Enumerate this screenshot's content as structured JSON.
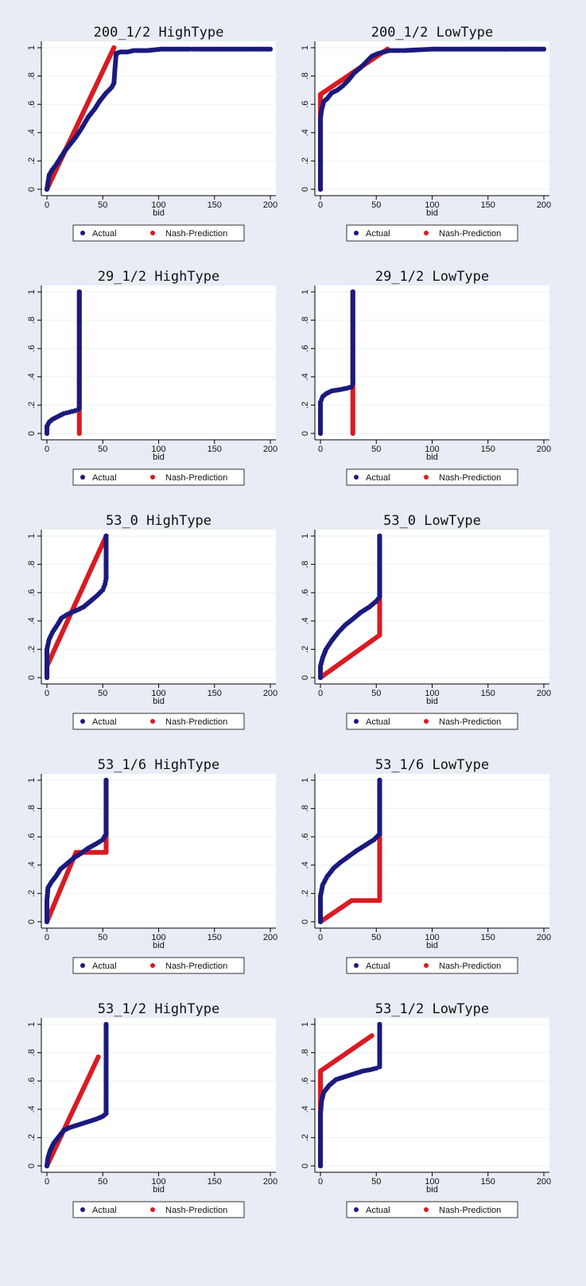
{
  "colors": {
    "actual": "#1a1a7e",
    "nash": "#d91b22",
    "plot_bg": "#ffffff",
    "page_bg": "#e8ecf4",
    "grid": "#eaf2f3"
  },
  "legend": {
    "actual": "Actual",
    "nash": "Nash-Prediction"
  },
  "chart_data": [
    {
      "type": "line",
      "title": "200_1/2 HighType",
      "xlabel": "bid",
      "ylabel": "",
      "xlim": [
        0,
        200
      ],
      "ylim": [
        0,
        1
      ],
      "grid": true,
      "legend_position": "bottom",
      "xticks": [
        "0",
        "50",
        "100",
        "150",
        "200"
      ],
      "yticks": [
        "0",
        ".2",
        ".4",
        ".6",
        ".8",
        "1"
      ],
      "series": [
        {
          "name": "Actual",
          "points": [
            [
              0,
              0
            ],
            [
              1,
              0.05
            ],
            [
              2,
              0.1
            ],
            [
              5,
              0.14
            ],
            [
              8,
              0.17
            ],
            [
              12,
              0.22
            ],
            [
              16,
              0.27
            ],
            [
              20,
              0.31
            ],
            [
              26,
              0.37
            ],
            [
              31,
              0.43
            ],
            [
              37,
              0.51
            ],
            [
              43,
              0.57
            ],
            [
              47,
              0.62
            ],
            [
              53,
              0.68
            ],
            [
              58,
              0.72
            ],
            [
              60,
              0.75
            ],
            [
              61,
              0.86
            ],
            [
              62,
              0.96
            ],
            [
              66,
              0.97
            ],
            [
              72,
              0.97
            ],
            [
              78,
              0.98
            ],
            [
              86,
              0.98
            ],
            [
              90,
              0.98
            ],
            [
              102,
              0.99
            ],
            [
              122,
              0.99
            ],
            [
              128,
              0.99
            ],
            [
              133,
              0.99
            ],
            [
              138,
              0.99
            ],
            [
              142,
              0.99
            ],
            [
              148,
              0.99
            ],
            [
              175,
              0.99
            ],
            [
              186,
              0.99
            ],
            [
              200,
              0.99
            ]
          ]
        },
        {
          "name": "Nash-Prediction",
          "points": [
            [
              0,
              0
            ],
            [
              60,
              1
            ]
          ]
        }
      ]
    },
    {
      "type": "line",
      "title": "200_1/2 LowType",
      "xlabel": "bid",
      "ylabel": "",
      "xlim": [
        0,
        200
      ],
      "ylim": [
        0,
        1
      ],
      "grid": true,
      "legend_position": "bottom",
      "xticks": [
        "0",
        "50",
        "100",
        "150",
        "200"
      ],
      "yticks": [
        "0",
        ".2",
        ".4",
        ".6",
        ".8",
        "1"
      ],
      "series": [
        {
          "name": "Actual",
          "points": [
            [
              0,
              0
            ],
            [
              0,
              0.5
            ],
            [
              1,
              0.56
            ],
            [
              3,
              0.62
            ],
            [
              6,
              0.64
            ],
            [
              10,
              0.68
            ],
            [
              15,
              0.7
            ],
            [
              20,
              0.73
            ],
            [
              25,
              0.77
            ],
            [
              30,
              0.82
            ],
            [
              36,
              0.86
            ],
            [
              41,
              0.9
            ],
            [
              46,
              0.94
            ],
            [
              52,
              0.96
            ],
            [
              57,
              0.97
            ],
            [
              62,
              0.98
            ],
            [
              70,
              0.98
            ],
            [
              75,
              0.98
            ],
            [
              100,
              0.99
            ],
            [
              108,
              0.99
            ],
            [
              170,
              0.99
            ],
            [
              200,
              0.99
            ]
          ]
        },
        {
          "name": "Nash-Prediction",
          "points": [
            [
              0,
              0
            ],
            [
              0,
              0.67
            ],
            [
              60,
              0.99
            ]
          ]
        }
      ]
    },
    {
      "type": "line",
      "title": "29_1/2 HighType",
      "xlabel": "bid",
      "ylabel": "",
      "xlim": [
        0,
        200
      ],
      "ylim": [
        0,
        1
      ],
      "grid": true,
      "legend_position": "bottom",
      "xticks": [
        "0",
        "50",
        "100",
        "150",
        "200"
      ],
      "yticks": [
        "0",
        ".2",
        ".4",
        ".6",
        ".8",
        "1"
      ],
      "series": [
        {
          "name": "Actual",
          "points": [
            [
              0,
              0
            ],
            [
              0,
              0.05
            ],
            [
              2,
              0.08
            ],
            [
              5,
              0.1
            ],
            [
              10,
              0.12
            ],
            [
              15,
              0.14
            ],
            [
              20,
              0.15
            ],
            [
              25,
              0.16
            ],
            [
              28,
              0.17
            ],
            [
              29,
              0.18
            ],
            [
              29,
              1
            ]
          ]
        },
        {
          "name": "Nash-Prediction",
          "points": [
            [
              29,
              0
            ],
            [
              29,
              1
            ]
          ]
        }
      ]
    },
    {
      "type": "line",
      "title": "29_1/2 LowType",
      "xlabel": "bid",
      "ylabel": "",
      "xlim": [
        0,
        200
      ],
      "ylim": [
        0,
        1
      ],
      "grid": true,
      "legend_position": "bottom",
      "xticks": [
        "0",
        "50",
        "100",
        "150",
        "200"
      ],
      "yticks": [
        "0",
        ".2",
        ".4",
        ".6",
        ".8",
        "1"
      ],
      "series": [
        {
          "name": "Actual",
          "points": [
            [
              0,
              0
            ],
            [
              0,
              0.22
            ],
            [
              2,
              0.26
            ],
            [
              5,
              0.28
            ],
            [
              10,
              0.3
            ],
            [
              18,
              0.31
            ],
            [
              24,
              0.32
            ],
            [
              28,
              0.33
            ],
            [
              29,
              0.35
            ],
            [
              29,
              1
            ]
          ]
        },
        {
          "name": "Nash-Prediction",
          "points": [
            [
              29,
              0
            ],
            [
              29,
              1
            ]
          ]
        }
      ]
    },
    {
      "type": "line",
      "title": "53_0 HighType",
      "xlabel": "bid",
      "ylabel": "",
      "xlim": [
        0,
        200
      ],
      "ylim": [
        0,
        1
      ],
      "grid": true,
      "legend_position": "bottom",
      "xticks": [
        "0",
        "50",
        "100",
        "150",
        "200"
      ],
      "yticks": [
        "0",
        ".2",
        ".4",
        ".6",
        ".8",
        "1"
      ],
      "series": [
        {
          "name": "Actual",
          "points": [
            [
              0,
              0
            ],
            [
              0,
              0.2
            ],
            [
              2,
              0.27
            ],
            [
              5,
              0.32
            ],
            [
              10,
              0.38
            ],
            [
              13,
              0.42
            ],
            [
              17,
              0.44
            ],
            [
              22,
              0.46
            ],
            [
              28,
              0.48
            ],
            [
              33,
              0.5
            ],
            [
              39,
              0.54
            ],
            [
              45,
              0.58
            ],
            [
              50,
              0.62
            ],
            [
              52,
              0.66
            ],
            [
              53,
              0.7
            ],
            [
              53,
              1
            ]
          ]
        },
        {
          "name": "Nash-Prediction",
          "points": [
            [
              0,
              0
            ],
            [
              0,
              0.08
            ],
            [
              53,
              1
            ]
          ]
        }
      ]
    },
    {
      "type": "line",
      "title": "53_0 LowType",
      "xlabel": "bid",
      "ylabel": "",
      "xlim": [
        0,
        200
      ],
      "ylim": [
        0,
        1
      ],
      "grid": true,
      "legend_position": "bottom",
      "xticks": [
        "0",
        "50",
        "100",
        "150",
        "200"
      ],
      "yticks": [
        "0",
        ".2",
        ".4",
        ".6",
        ".8",
        "1"
      ],
      "series": [
        {
          "name": "Actual",
          "points": [
            [
              0,
              0
            ],
            [
              0,
              0.08
            ],
            [
              2,
              0.14
            ],
            [
              5,
              0.2
            ],
            [
              10,
              0.26
            ],
            [
              16,
              0.32
            ],
            [
              22,
              0.37
            ],
            [
              30,
              0.42
            ],
            [
              36,
              0.46
            ],
            [
              44,
              0.5
            ],
            [
              50,
              0.54
            ],
            [
              53,
              0.57
            ],
            [
              53,
              1
            ]
          ]
        },
        {
          "name": "Nash-Prediction",
          "points": [
            [
              0,
              0
            ],
            [
              53,
              0.3
            ],
            [
              53,
              1
            ]
          ]
        }
      ]
    },
    {
      "type": "line",
      "title": "53_1/6 HighType",
      "xlabel": "bid",
      "ylabel": "",
      "xlim": [
        0,
        200
      ],
      "ylim": [
        0,
        1
      ],
      "grid": true,
      "legend_position": "bottom",
      "xticks": [
        "0",
        "50",
        "100",
        "150",
        "200"
      ],
      "yticks": [
        "0",
        ".2",
        ".4",
        ".6",
        ".8",
        "1"
      ],
      "series": [
        {
          "name": "Actual",
          "points": [
            [
              0,
              0
            ],
            [
              0,
              0.15
            ],
            [
              1,
              0.24
            ],
            [
              4,
              0.28
            ],
            [
              8,
              0.32
            ],
            [
              12,
              0.37
            ],
            [
              18,
              0.41
            ],
            [
              24,
              0.45
            ],
            [
              30,
              0.48
            ],
            [
              37,
              0.52
            ],
            [
              44,
              0.55
            ],
            [
              50,
              0.58
            ],
            [
              53,
              0.62
            ],
            [
              53,
              1
            ]
          ]
        },
        {
          "name": "Nash-Prediction",
          "points": [
            [
              0,
              0
            ],
            [
              26,
              0.49
            ],
            [
              53,
              0.49
            ],
            [
              53,
              1
            ]
          ]
        }
      ]
    },
    {
      "type": "line",
      "title": "53_1/6 LowType",
      "xlabel": "bid",
      "ylabel": "",
      "xlim": [
        0,
        200
      ],
      "ylim": [
        0,
        1
      ],
      "grid": true,
      "legend_position": "bottom",
      "xticks": [
        "0",
        "50",
        "100",
        "150",
        "200"
      ],
      "yticks": [
        "0",
        ".2",
        ".4",
        ".6",
        ".8",
        "1"
      ],
      "series": [
        {
          "name": "Actual",
          "points": [
            [
              0,
              0
            ],
            [
              0,
              0.18
            ],
            [
              2,
              0.26
            ],
            [
              6,
              0.32
            ],
            [
              12,
              0.38
            ],
            [
              18,
              0.42
            ],
            [
              25,
              0.46
            ],
            [
              32,
              0.5
            ],
            [
              40,
              0.54
            ],
            [
              48,
              0.58
            ],
            [
              53,
              0.62
            ],
            [
              53,
              1
            ]
          ]
        },
        {
          "name": "Nash-Prediction",
          "points": [
            [
              0,
              0
            ],
            [
              28,
              0.15
            ],
            [
              53,
              0.15
            ],
            [
              53,
              1
            ]
          ]
        }
      ]
    },
    {
      "type": "line",
      "title": "53_1/2 HighType",
      "xlabel": "bid",
      "ylabel": "",
      "xlim": [
        0,
        200
      ],
      "ylim": [
        0,
        1
      ],
      "grid": true,
      "legend_position": "bottom",
      "xticks": [
        "0",
        "50",
        "100",
        "150",
        "200"
      ],
      "yticks": [
        "0",
        ".2",
        ".4",
        ".6",
        ".8",
        "1"
      ],
      "series": [
        {
          "name": "Actual",
          "points": [
            [
              0,
              0
            ],
            [
              1,
              0.06
            ],
            [
              3,
              0.11
            ],
            [
              6,
              0.16
            ],
            [
              10,
              0.2
            ],
            [
              15,
              0.25
            ],
            [
              20,
              0.27
            ],
            [
              28,
              0.29
            ],
            [
              36,
              0.31
            ],
            [
              44,
              0.33
            ],
            [
              50,
              0.35
            ],
            [
              53,
              0.37
            ],
            [
              53,
              1
            ]
          ]
        },
        {
          "name": "Nash-Prediction",
          "points": [
            [
              0,
              0
            ],
            [
              46,
              0.77
            ]
          ]
        }
      ]
    },
    {
      "type": "line",
      "title": "53_1/2 LowType",
      "xlabel": "bid",
      "ylabel": "",
      "xlim": [
        0,
        200
      ],
      "ylim": [
        0,
        1
      ],
      "grid": true,
      "legend_position": "bottom",
      "xticks": [
        "0",
        "50",
        "100",
        "150",
        "200"
      ],
      "yticks": [
        "0",
        ".2",
        ".4",
        ".6",
        ".8",
        "1"
      ],
      "series": [
        {
          "name": "Actual",
          "points": [
            [
              0,
              0
            ],
            [
              0,
              0.36
            ],
            [
              1,
              0.46
            ],
            [
              3,
              0.52
            ],
            [
              8,
              0.57
            ],
            [
              14,
              0.61
            ],
            [
              22,
              0.63
            ],
            [
              30,
              0.65
            ],
            [
              38,
              0.67
            ],
            [
              45,
              0.68
            ],
            [
              50,
              0.69
            ],
            [
              53,
              0.7
            ],
            [
              53,
              1
            ]
          ]
        },
        {
          "name": "Nash-Prediction",
          "points": [
            [
              0,
              0
            ],
            [
              0,
              0.67
            ],
            [
              46,
              0.92
            ]
          ]
        }
      ]
    }
  ]
}
